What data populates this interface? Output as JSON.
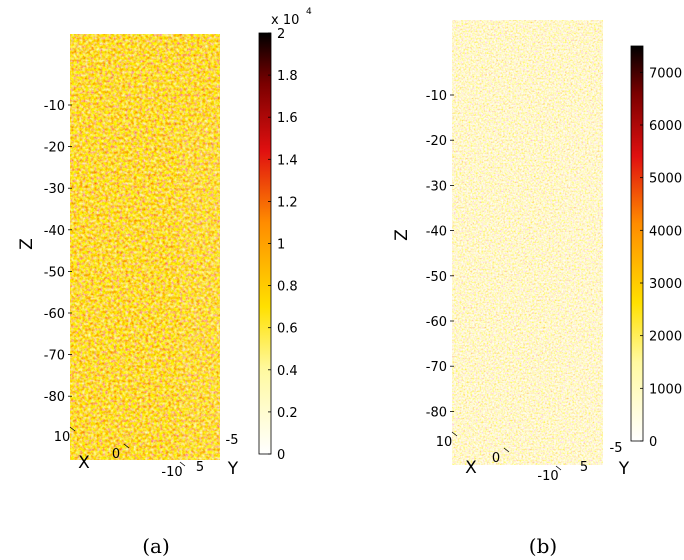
{
  "chart_data": [
    {
      "type": "3d-volume",
      "panel_label": "(a)",
      "xlabel": "X",
      "ylabel": "Y",
      "zlabel": "Z",
      "x_ticks": [
        "10",
        "0",
        "-10"
      ],
      "y_ticks": [
        "-5",
        "5"
      ],
      "z_ticks": [
        "-10",
        "-20",
        "-30",
        "-40",
        "-50",
        "-60",
        "-70",
        "-80"
      ],
      "colorbar": {
        "colormap": "hot (inverted)",
        "range": [
          0,
          20000
        ],
        "ticks": [
          "0",
          "0.2",
          "0.4",
          "0.6",
          "0.8",
          "1",
          "1.2",
          "1.4",
          "1.6",
          "1.8",
          "2"
        ],
        "multiplier": "x 10",
        "multiplier_exponent": "4"
      }
    },
    {
      "type": "3d-volume",
      "panel_label": "(b)",
      "xlabel": "X",
      "ylabel": "Y",
      "zlabel": "Z",
      "x_ticks": [
        "10",
        "0",
        "-10"
      ],
      "y_ticks": [
        "-5",
        "5"
      ],
      "z_ticks": [
        "-10",
        "-20",
        "-30",
        "-40",
        "-50",
        "-60",
        "-70",
        "-80"
      ],
      "colorbar": {
        "colormap": "hot (inverted)",
        "range": [
          0,
          7500
        ],
        "ticks": [
          "0",
          "1000",
          "2000",
          "3000",
          "4000",
          "5000",
          "6000",
          "7000"
        ]
      }
    }
  ]
}
